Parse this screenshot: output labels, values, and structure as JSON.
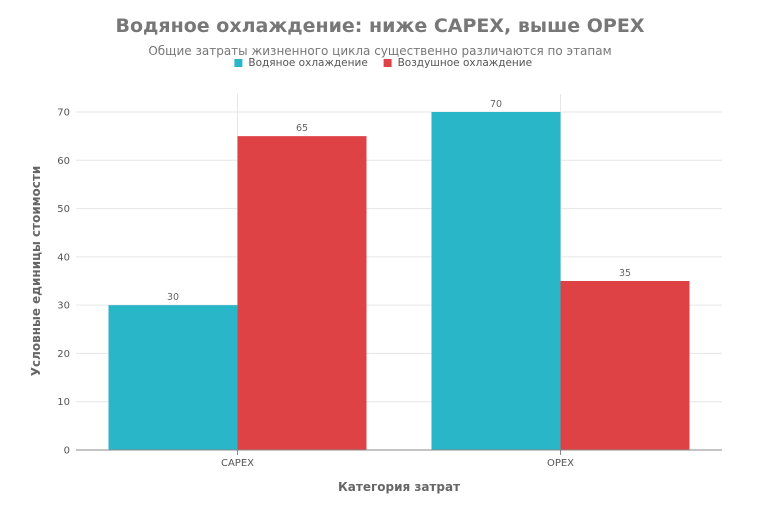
{
  "chart_data": {
    "type": "bar",
    "title": "Водяное охлаждение: ниже CAPEX, выше OPEX",
    "subtitle": "Общие затраты жизненного цикла существенно различаются по этапам",
    "xlabel": "Категория затрат",
    "ylabel": "Условные единицы стоимости",
    "categories": [
      "CAPEX",
      "OPEX"
    ],
    "series": [
      {
        "name": "Водяное охлаждение",
        "color": "#29b6c9",
        "values": [
          30,
          70
        ]
      },
      {
        "name": "Воздушное охлаждение",
        "color": "#de4244",
        "values": [
          65,
          35
        ]
      }
    ],
    "ylim": [
      0,
      70
    ],
    "yticks": [
      0,
      10,
      20,
      30,
      40,
      50,
      60,
      70
    ],
    "grid": true,
    "legend_position": "top-center"
  }
}
